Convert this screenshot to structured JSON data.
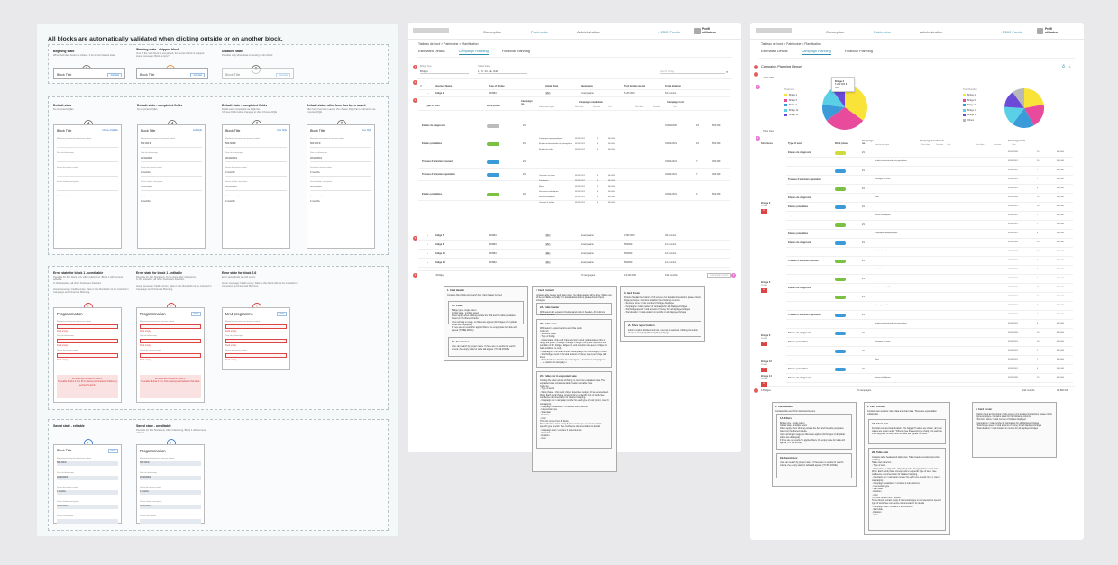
{
  "board1": {
    "title": "All blocks are automatically validated when clicking outside or on another block.",
    "row1": [
      {
        "label": "Begining state",
        "sub": "When Add data button is clicked, it turns into Default state.",
        "circle": "6",
        "block": "Block Title",
        "btn": "Add data"
      },
      {
        "label": "Warning state - skipped block",
        "sub": "One of the next block is completed, the current block is skipped.\nHover message: Block empty?",
        "circle": "!",
        "block": "Block Title",
        "btn": "Add data"
      },
      {
        "label": "Disabled state",
        "sub": "Possible only when data is missing in first block",
        "circle": "6",
        "block": "Block Title",
        "btn": "Add data"
      }
    ],
    "row2": [
      {
        "label": "Default state",
        "sub": "No imported DQEs",
        "circle": "4",
        "block": "Block Title",
        "link": "Choose DQE file"
      },
      {
        "label": "Default state - completed fields",
        "sub": "No imported DQEs",
        "circle": "4",
        "block": "Block Title",
        "link": "Add DQE"
      },
      {
        "label": "Default state - completed fields",
        "sub": "Fields were completed via DQE file.\nChoose DQE button changes to View Chosen DQE",
        "circle": "2",
        "block": "Block Title",
        "link": "View DQE"
      },
      {
        "label": "Default state - after form has been saved",
        "sub": "After form has been saved, the chosen DQE file is referred to as imported DQE.",
        "circle": "2",
        "block": "Block Title",
        "link": "View DQE"
      }
    ],
    "fields": {
      "f1": "Montant prévisionnel au travaux estimé",
      "v1": "500 000 €",
      "f2": "Date de démarrage",
      "v2": "20/10/2019",
      "f3": "Durée de travaux estimé",
      "v3": "3 months",
      "f4": "Durée études conception",
      "v4": "20/10/2019",
      "f5": "Durée consultation",
      "v5": "4 months"
    },
    "row3": [
      {
        "label": "Error state for block 1 - uneditable",
        "sub": "Possible for first block only. After refactoring, Block 1 will become editable.\nIn this situation, all other blocks are disabled.\n\nHover message: Fields empty. Data in this block will not be included in Campaign and Financial Planning.",
        "block": "Programmation",
        "error": "All fields are required in Block 1.\nTo enable Blocks 2 to 6, fill in missing information in Patrimony sections 5 and 6."
      },
      {
        "label": "Error state for block 1 - editable",
        "sub": "Possible for first block only. To be done after refactoring.\nIn this situation, all other blocks are disabled.\n\nHover message: Fields empty. Data in this block will not be included in Campaign and Financial Planning.",
        "block": "Programmation",
        "btn": "EDIT",
        "error": "All fields are required in Block 1.\nTo enable Blocks 2 to 6, fill in missing information in this block."
      },
      {
        "label": "Error state for block 2-6",
        "sub": "Error when fields are left empty.\n\nHover message: Fields empty. Data in this block will not be included in Campaign and Financial Planning.",
        "block": "MAJ programme",
        "btn": "EDIT"
      }
    ],
    "field_empty": "Field empty",
    "row4": [
      {
        "label": "Saved state - editable",
        "sub": "",
        "block": "Block Title",
        "btn": "EDIT"
      },
      {
        "label": "Saved state - uneditable",
        "sub": "Possible for first block only. After refactoring, Block 1 will become editable.",
        "block": "Programmation"
      }
    ]
  },
  "app": {
    "nav": [
      "Conception",
      "Patrimoine",
      "Administration"
    ],
    "funds": "2500 Fonds",
    "profile": [
      "Profil",
      "utilisateur"
    ],
    "breadcrumb2": "Tableau de bord > Patrimoine > Planification",
    "breadcrumb3": "Tableau de bord > Patrimoine > Planification",
    "tabs": [
      "Estimated Details",
      "Campaign Planning",
      "Financial Planning"
    ]
  },
  "board2": {
    "filters": [
      "Bridge Type",
      "Global State"
    ],
    "filter_vals": [
      "Bridges",
      "1, 2U, 3U, 2E, 3UE"
    ],
    "search": "Search bridge",
    "headers": [
      "Structure Name",
      "Type of bridge",
      "Global State",
      "Campaigns",
      "Total bridge spend",
      "Total duration"
    ],
    "sub_headers": [
      "Type of work",
      "Work phase",
      "Campaign no.",
      "Campaign breakdown",
      "Campaign total"
    ],
    "sub_sub": [
      "Intervention type",
      "Start date",
      "Duration",
      "Cost",
      "Start date",
      "Duration",
      "Cost"
    ],
    "bridge2": {
      "name": "Bridge 2",
      "type": "RDSBA",
      "state": "2U",
      "camps": "7 campaigns",
      "spend": "5 200 000",
      "dur": "64 months"
    },
    "works": [
      {
        "t": "Etudes de diagnostic",
        "num": "#1",
        "sd": "01/09/2020",
        "d": "15",
        "c": "500 000"
      },
      {
        "t": "Etudes préalables",
        "num": "#1",
        "sd": "01/01/2021",
        "d": "10",
        "c": "500 000"
      },
      {
        "t": "Travaux d'entretien courant",
        "num": "#1",
        "sd": "01/01/2021",
        "d": "7",
        "c": "300 000"
      },
      {
        "t": "Travaux d'entretien spécialisé",
        "num": "#1",
        "sd": "01/01/2021",
        "d": "7",
        "c": "300 000"
      },
      {
        "t": "Etudes préalables",
        "num": "#1",
        "sd": "01/01/2021",
        "d": "4",
        "c": "500 000"
      }
    ],
    "interventions": [
      "Campagne topographique",
      "Etudes architecturales et paysagères",
      "Etudes de trafic",
      "Ouvrages en terre",
      "Fondations",
      "Murs",
      "Structures métalliques",
      "Buses métalliques",
      "Ouvrage à voûtes"
    ],
    "bridges": [
      {
        "n": "Bridge 5",
        "t": "RDSBA",
        "s": "3U",
        "c": "2 campaigns",
        "sp": "2 800 000",
        "d": "39 months"
      },
      {
        "n": "Bridge 6",
        "t": "RDSBA",
        "s": "2U",
        "c": "4 campaigns",
        "sp": "500 000",
        "d": "12 months"
      },
      {
        "n": "Bridge 12",
        "t": "RDSBA",
        "s": "2E",
        "c": "2 campaigns",
        "sp": "500 000",
        "d": "12 months"
      },
      {
        "n": "Bridge 14",
        "t": "RDSBA",
        "s": "3U",
        "c": "2 campaigns",
        "sp": "500 000",
        "d": "12 months"
      }
    ],
    "footer": {
      "bridges": "6 Bridges",
      "camps": "76 campaigns",
      "spend": "13 800 000",
      "dur": "192 months",
      "btn": "Campaign report"
    },
    "notes": {
      "n1": {
        "title": "1. Card Header",
        "text": "Contains filter fields and search box. Card header is fixed."
      },
      "n1a": {
        "title": "1A. Filters",
        "text": "Bridge type - single select\nGlobal state - multiple select\nFilters apply when clicking outside the field and the table populates based on the filtered criteria.\nUpon arriving on page, no filters are applied (All bridges of all global states are displayed)\nIf there are no results for applied filters, the empty state for table will appear (TO BE DONE)"
      },
      "n1b": {
        "title": "1B. Search box",
        "text": "User can search by project name. If there are no results for search criteria, the empty state for table will appear. (TO BE DONE)"
      },
      "n2": {
        "title": "2. Card Content",
        "text": "Contains table header and table rows. The table header will be fixed. Table rows will be scrollable vertically. For detailed interactions please check Figma prototype."
      },
      "n2a": {
        "title": "2A. Table header",
        "text": "With select all / expand all buttons and column headers.\nAll columns can be sorted. ?"
      },
      "n2b": {
        "title": "2B. Table rows",
        "text": "With select / expand actions and table cells.\nColumns:\n- Structure name\n- Type of bridge\n- Global state - chip cell, chips are color coded: global states in the 1 range are green, 2 range - orange, 3 range - red (these represent the condition of the bridge, bridges in good condition are green, bridges in bad condition are red)\n- Campaigns = the total number of campaigns for one bridge per lines\n- Total bridge spend = the total amount of money spent per bridge (all lines)\n- Total duration = duration for campaign 1 + duration for campaign 2 + ... + duration for campaign n"
      },
      "n2c": {
        "title": "2C. Table row in expanded state",
        "text": "Clicking the down arrow will bring the row in an expanded state. The expanded state contains a table header and table rows.\nColumns:\n- Type of work\n- Work phase = chip cells, chips: Expertise, Design, AO as enumerated. Work: Each work phase corresponds to a specific type of work. See confluence documentation for detailed mapping.\n- Campaign no = campaign number for each type of work (min 1, max 6 campaigns)\n- Campaign breakdown = contains 4 sub-columns:\n - Intervention type\n - Start date\n - Duration\n - Cost\n This info comes from 6 blocks.\n These blocks remain empty if intervention type is not relevant for specific type of work. See confluence documentation for details\n- Campaign total = contains 3 sub-columns:\n - Start date\n - Duration\n - Cost"
      },
      "n3": {
        "title": "3. Card Footer",
        "text": "Position fixed at the bottom of the screen. For detailed interactions please check Figma prototype. Contains totals for the following columns:\n- Structure name = total number of bridges displayed\n- Campaigns = total number of campaigns for all displayed bridges\n- Total bridge spend = total amount of money for all displayed bridges\n- Total duration = total duration in months for all displayed bridges"
      },
      "n3a": {
        "title": "3A. Show report button",
        "text": "Button remains disabled until min. one row is selected. Clicking the button will open \"Campaign Planning Report\" page."
      }
    }
  },
  "board3": {
    "report_title": "Campaign Planning Report",
    "chart_label": "Chart Data",
    "legend_left_title": "Total cost",
    "legend_left": [
      "Bridge 2",
      "Bridge 5",
      "Bridge 6",
      "Bridge 12",
      "Bridge 14"
    ],
    "legend_right_title": "Total Duration",
    "legend_right": [
      "Bridge 2",
      "Bridge 5",
      "Bridge 6",
      "Bridge 12",
      "Bridge 14",
      "Others"
    ],
    "tooltip": {
      "title": "Bridge 2",
      "val": "5 200 000 €",
      "pct": "35%"
    },
    "table_label": "Table Data",
    "headers": [
      "Structures",
      "Type of work",
      "Work phase",
      "Campaign no.",
      "Campaign breakdown",
      "Campaign total"
    ],
    "bridge_names": [
      "Bridge 2",
      "Bridge 5",
      "Bridge 6",
      "Bridge 12",
      "Bridge 14"
    ],
    "bridge_sub": "RDSBA",
    "footer": {
      "bridges": "6 Bridges",
      "camps": "76 campaigns",
      "dur": "192 months",
      "spend": "13 800 000"
    },
    "notes": {
      "n1": {
        "title": "1. Card Header",
        "text": "Contains title and Print/ download buttons."
      },
      "n1a": {
        "title": "1A. Filters",
        "text": "Bridge type - single select\nGlobal state - multiple select\nFilters apply when clicking outside the field and the table populates based on the filtered criteria.\nUpon arriving on page, no filters are applied (All bridges of all global states are displayed)\nIf there are no results for applied filters, the empty state for table will appear (TO BE DONE)"
      },
      "n1b": {
        "title": "1B. Search box",
        "text": "User can search by project name. If there are no results for search criteria, the empty state for table will appear. (TO BE DONE)"
      },
      "n2": {
        "title": "2. Card Content",
        "text": "Contains two sections: table data and chart data. These are expandable/ collapsable."
      },
      "n2a": {
        "title": "2A. Chart data",
        "text": "For total cost and total duration. The biggest 5 values are shown, all other values are shown under \"Others\" (see the second pie chart). For each pie chart segment, a tooltip with its value will appear on hover."
      },
      "n2b": {
        "title": "2B. Table data",
        "text": "Contains table header and table rows. Table header remains fixed when scrolling.\nTable rows columns:\n- Type of work\n- Work phase = chip cells, chips: Expertise, Design, AO as enumerated. Work: Each work phase corresponds to a specific type of work. See confluence documentation for detailed mapping.\n- Campaign no = campaign number for each type of work (min 1, max 6 campaigns)\n- Campaign breakdown = contains 4 sub-columns:\n - Intervention type\n - Start date\n - Duration\n - Cost\n This info comes from 6 blocks.\n These blocks remain empty if intervention type is not relevant for specific type of work. See confluence documentation for details\n- Campaign total = contains 3 sub-columns:\n - Start date\n - Duration\n - Cost"
      },
      "n3": {
        "title": "3. Card Footer",
        "text": "Position fixed at the bottom of the screen. For detailed interactions please check Figma prototype. Contains totals for the following columns:\n- Structure name = total number of bridges displayed\n- Campaigns = total number of campaigns for all displayed bridges\n- Total bridge spend = total amount of money for all displayed bridges\n- Total duration = total duration in months for all displayed bridges"
      }
    }
  },
  "colors": {
    "accent": "#2f8fae",
    "error": "#d44444",
    "warning": "#e8944a",
    "green": "#7ac142",
    "blue": "#3b9bd8"
  }
}
